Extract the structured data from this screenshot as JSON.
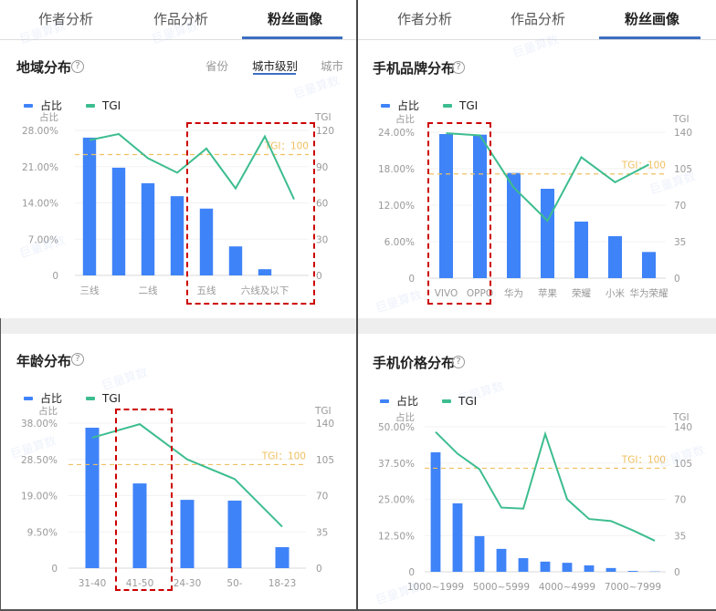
{
  "tabs": {
    "items": [
      {
        "label": "作者分析",
        "active": false
      },
      {
        "label": "作品分析",
        "active": false
      },
      {
        "label": "粉丝画像",
        "active": true
      }
    ]
  },
  "colors": {
    "bar": "#3f83f8",
    "tgi_line": "#3dbd8f",
    "tgi_ref": "#f0c060",
    "tab_active": "#3d6fc2",
    "highlight": "#cc0000"
  },
  "help_icon": "?",
  "watermark": "巨量算数",
  "legend": {
    "bar_label": "占比",
    "line_label": "TGI"
  },
  "panels": {
    "region": {
      "title": "地域分布",
      "subtabs": [
        {
          "label": "省份",
          "active": false
        },
        {
          "label": "城市级别",
          "active": true
        },
        {
          "label": "城市",
          "active": false
        }
      ]
    },
    "brand": {
      "title": "手机品牌分布"
    },
    "age": {
      "title": "年龄分布"
    },
    "price": {
      "title": "手机价格分布"
    }
  },
  "chart_data": [
    {
      "id": "region",
      "type": "bar",
      "title": "地域分布 - 城市级别",
      "categories": [
        "三线",
        "",
        "二线",
        "",
        "五线",
        "",
        "六线及以下",
        ""
      ],
      "series": [
        {
          "name": "占比",
          "type": "bar",
          "axis": "left",
          "values": [
            26.6,
            20.8,
            17.8,
            15.3,
            12.9,
            5.6,
            1.2,
            0
          ]
        },
        {
          "name": "TGI",
          "type": "line",
          "axis": "right",
          "values": [
            112,
            117,
            97,
            85,
            105,
            72,
            115,
            63
          ]
        }
      ],
      "left_axis": {
        "label": "占比",
        "ticks": [
          "0",
          "7.00%",
          "14.00%",
          "21.00%",
          "28.00%"
        ],
        "max": 28
      },
      "right_axis": {
        "label": "TGI",
        "ticks": [
          "0",
          "30",
          "60",
          "90",
          "120"
        ],
        "max": 120
      },
      "reference_line": {
        "label": "TGI：100",
        "value": 100
      },
      "highlight_categories": [
        4,
        7
      ]
    },
    {
      "id": "brand",
      "type": "bar",
      "title": "手机品牌分布",
      "categories": [
        "VIVO",
        "OPPO",
        "华为",
        "苹果",
        "荣耀",
        "小米",
        "华为荣耀"
      ],
      "series": [
        {
          "name": "占比",
          "type": "bar",
          "axis": "left",
          "values": [
            23.7,
            23.6,
            17.3,
            14.7,
            9.3,
            6.9,
            4.3
          ]
        },
        {
          "name": "TGI",
          "type": "line",
          "axis": "right",
          "values": [
            139,
            137,
            87,
            55,
            116,
            92,
            109
          ]
        }
      ],
      "left_axis": {
        "label": "占比",
        "ticks": [
          "0",
          "6.00%",
          "12.00%",
          "18.00%",
          "24.00%"
        ],
        "max": 24
      },
      "right_axis": {
        "label": "TGI",
        "ticks": [
          "0",
          "35",
          "70",
          "105",
          "140"
        ],
        "max": 140
      },
      "reference_line": {
        "label": "TGI：100",
        "value": 100
      },
      "highlight_categories": [
        0,
        1
      ]
    },
    {
      "id": "age",
      "type": "bar",
      "title": "年龄分布",
      "categories": [
        "31-40",
        "41-50",
        "24-30",
        "50-",
        "18-23"
      ],
      "series": [
        {
          "name": "占比",
          "type": "bar",
          "axis": "left",
          "values": [
            36.8,
            22.2,
            17.9,
            17.7,
            5.5
          ]
        },
        {
          "name": "TGI",
          "type": "line",
          "axis": "right",
          "values": [
            126,
            139,
            105,
            86,
            40
          ]
        }
      ],
      "left_axis": {
        "label": "占比",
        "ticks": [
          "0",
          "9.50%",
          "19.00%",
          "28.50%",
          "38.00%"
        ],
        "max": 38
      },
      "right_axis": {
        "label": "TGI",
        "ticks": [
          "0",
          "35",
          "70",
          "105",
          "140"
        ],
        "max": 140
      },
      "reference_line": {
        "label": "TGI：100",
        "value": 100
      },
      "highlight_categories": [
        1,
        1
      ]
    },
    {
      "id": "price",
      "type": "bar",
      "title": "手机价格分布",
      "categories": [
        "1000~1999",
        "",
        "",
        "5000~5999",
        "",
        "",
        "4000~4999",
        "",
        "",
        "7000~7999",
        ""
      ],
      "series": [
        {
          "name": "占比",
          "type": "bar",
          "axis": "left",
          "values": [
            41.2,
            23.6,
            12.3,
            7.9,
            4.7,
            3.5,
            3.1,
            2.2,
            1.3,
            0.3,
            0.1
          ]
        },
        {
          "name": "TGI",
          "type": "line",
          "axis": "right",
          "values": [
            135,
            114,
            99,
            62,
            61,
            133,
            70,
            51,
            49,
            40,
            30
          ]
        }
      ],
      "left_axis": {
        "label": "占比",
        "ticks": [
          "0",
          "12.50%",
          "25.00%",
          "37.50%",
          "50.00%"
        ],
        "max": 50
      },
      "right_axis": {
        "label": "TGI",
        "ticks": [
          "0",
          "35",
          "70",
          "105",
          "140"
        ],
        "max": 140
      },
      "reference_line": {
        "label": "TGI：100",
        "value": 100
      },
      "highlight_categories": []
    }
  ]
}
